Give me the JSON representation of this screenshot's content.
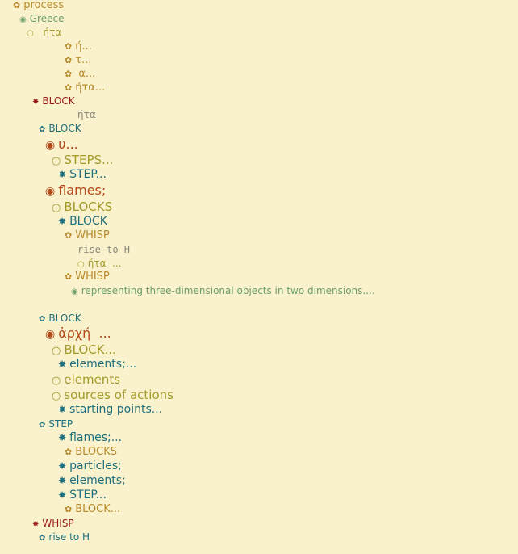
{
  "outline": [
    {
      "key": "n01",
      "icon": "✿",
      "icon_name": "flower-bullet-icon",
      "text": "process",
      "color": "gold",
      "size": 13
    },
    {
      "key": "n02",
      "icon": "◉",
      "icon_name": "filled-circle-bullet-icon",
      "text": "Greece",
      "color": "green",
      "size": 12
    },
    {
      "key": "n03",
      "icon": "○",
      "icon_name": "hollow-circle-bullet-icon",
      "text": "  ήτα",
      "color": "olive",
      "size": 12
    },
    {
      "key": "n04",
      "icon": "✿",
      "icon_name": "flower-bullet-icon",
      "text": "ή...",
      "color": "gold",
      "size": 13
    },
    {
      "key": "n05",
      "icon": "✿",
      "icon_name": "flower-bullet-icon",
      "text": "τ...",
      "color": "gold",
      "size": 13
    },
    {
      "key": "n06",
      "icon": "✿",
      "icon_name": "flower-bullet-icon",
      "text": " α...",
      "color": "gold",
      "size": 13
    },
    {
      "key": "n07",
      "icon": "✿",
      "icon_name": "flower-bullet-icon",
      "text": "ήτα...",
      "color": "gold",
      "size": 13
    },
    {
      "key": "n08",
      "icon": "✸",
      "icon_name": "star-bullet-icon",
      "text": "BLOCK",
      "color": "red",
      "size": 12
    },
    {
      "key": "n09",
      "icon": "",
      "icon_name": "",
      "text": "ήτα",
      "color": "gray",
      "size": 12
    },
    {
      "key": "n10",
      "icon": "✿",
      "icon_name": "flower-bullet-icon",
      "text": "BLOCK",
      "color": "teal",
      "size": 12
    },
    {
      "key": "n11",
      "icon": "◉",
      "icon_name": "filled-circle-bullet-icon",
      "text": "υ...",
      "color": "rust",
      "size": 16
    },
    {
      "key": "n12",
      "icon": "○",
      "icon_name": "hollow-circle-bullet-icon",
      "text": "STEPS...",
      "color": "olive",
      "size": 15
    },
    {
      "key": "n13",
      "icon": "✸",
      "icon_name": "star-bullet-icon",
      "text": "STEP...",
      "color": "teal",
      "size": 14
    },
    {
      "key": "n14",
      "icon": "◉",
      "icon_name": "filled-circle-bullet-icon",
      "text": "flames;",
      "color": "rust",
      "size": 16
    },
    {
      "key": "n15",
      "icon": "○",
      "icon_name": "hollow-circle-bullet-icon",
      "text": "BLOCKS",
      "color": "olive",
      "size": 15
    },
    {
      "key": "n16",
      "icon": "✸",
      "icon_name": "star-bullet-icon",
      "text": "BLOCK",
      "color": "teal",
      "size": 14
    },
    {
      "key": "n17",
      "icon": "✿",
      "icon_name": "flower-bullet-icon",
      "text": "WHISP",
      "color": "gold",
      "size": 13
    },
    {
      "key": "n18",
      "icon": "",
      "icon_name": "",
      "text": "rise to H",
      "color": "gray",
      "size": 12,
      "mono": true
    },
    {
      "key": "n19",
      "icon": "○",
      "icon_name": "hollow-circle-bullet-icon",
      "text": "ήτα  ...",
      "color": "olive",
      "size": 12
    },
    {
      "key": "n20",
      "icon": "✿",
      "icon_name": "flower-bullet-icon",
      "text": "WHISP",
      "color": "gold",
      "size": 13
    },
    {
      "key": "n21",
      "icon": "◉",
      "icon_name": "filled-circle-bullet-icon",
      "text": "representing three-dimensional objects in two dimensions....",
      "color": "green",
      "size": 12
    },
    {
      "key": "n22",
      "icon": "✿",
      "icon_name": "flower-bullet-icon",
      "text": "BLOCK",
      "color": "teal",
      "size": 12
    },
    {
      "key": "n23",
      "icon": "◉",
      "icon_name": "filled-circle-bullet-icon",
      "text": "ἀρχή  ...",
      "color": "rust",
      "size": 16
    },
    {
      "key": "n24",
      "icon": "○",
      "icon_name": "hollow-circle-bullet-icon",
      "text": "BLOCK...",
      "color": "olive",
      "size": 15
    },
    {
      "key": "n25",
      "icon": "✸",
      "icon_name": "star-bullet-icon",
      "text": "elements;...",
      "color": "teal",
      "size": 14
    },
    {
      "key": "n26",
      "icon": "○",
      "icon_name": "hollow-circle-bullet-icon",
      "text": "elements",
      "color": "olive",
      "size": 15
    },
    {
      "key": "n27",
      "icon": "○",
      "icon_name": "hollow-circle-bullet-icon",
      "text": "sources of actions",
      "color": "olive",
      "size": 15
    },
    {
      "key": "n28",
      "icon": "✸",
      "icon_name": "star-bullet-icon",
      "text": "starting points...",
      "color": "teal",
      "size": 14
    },
    {
      "key": "n29",
      "icon": "✿",
      "icon_name": "flower-bullet-icon",
      "text": "STEP",
      "color": "teal",
      "size": 12
    },
    {
      "key": "n30",
      "icon": "✸",
      "icon_name": "star-bullet-icon",
      "text": "flames;...",
      "color": "teal",
      "size": 14
    },
    {
      "key": "n31",
      "icon": "✿",
      "icon_name": "flower-bullet-icon",
      "text": "BLOCKS",
      "color": "gold",
      "size": 13
    },
    {
      "key": "n32",
      "icon": "✸",
      "icon_name": "star-bullet-icon",
      "text": "particles;",
      "color": "teal",
      "size": 14
    },
    {
      "key": "n33",
      "icon": "✸",
      "icon_name": "star-bullet-icon",
      "text": "elements;",
      "color": "teal",
      "size": 14
    },
    {
      "key": "n34",
      "icon": "✸",
      "icon_name": "star-bullet-icon",
      "text": "STEP...",
      "color": "teal",
      "size": 14
    },
    {
      "key": "n35",
      "icon": "✿",
      "icon_name": "flower-bullet-icon",
      "text": "BLOCK...",
      "color": "gold",
      "size": 13
    },
    {
      "key": "n36",
      "icon": "✸",
      "icon_name": "star-bullet-icon",
      "text": "WHISP",
      "color": "red",
      "size": 12
    },
    {
      "key": "n37",
      "icon": "✿",
      "icon_name": "flower-bullet-icon",
      "text": "rise to H",
      "color": "teal",
      "size": 12
    }
  ]
}
